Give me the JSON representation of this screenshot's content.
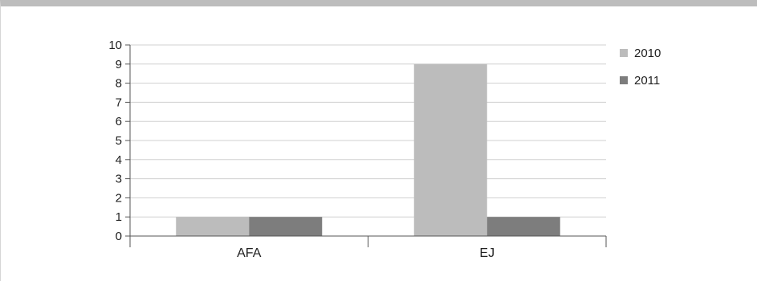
{
  "chart_data": {
    "type": "bar",
    "categories": [
      "AFA",
      "EJ"
    ],
    "series": [
      {
        "name": "2010",
        "values": [
          1,
          9
        ],
        "color": "#bcbcbc"
      },
      {
        "name": "2011",
        "values": [
          1,
          1
        ],
        "color": "#7d7d7d"
      }
    ],
    "ylim": [
      0,
      10
    ],
    "yticks": [
      "0",
      "1",
      "2",
      "3",
      "4",
      "5",
      "6",
      "7",
      "8",
      "9",
      "10"
    ],
    "grid": true,
    "legend_position": "right",
    "gridline_color": "#d0d0d0",
    "axis_color": "#555555"
  }
}
